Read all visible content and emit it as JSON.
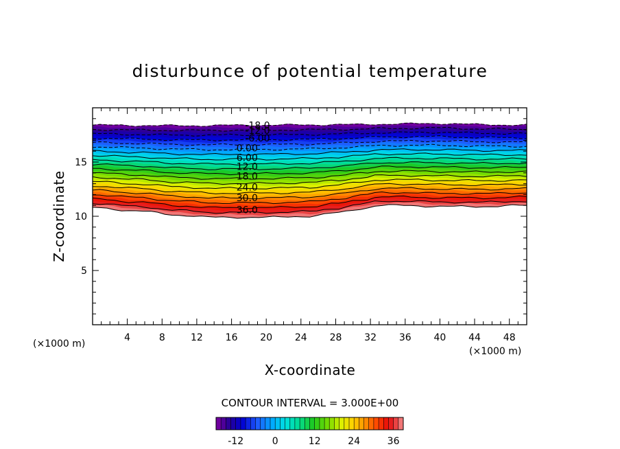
{
  "chart_data": {
    "type": "contour",
    "title": "disturbunce of potential temperature",
    "xlabel": "X-coordinate",
    "ylabel": "Z-coordinate",
    "x_unit": "(×1000 m)",
    "y_unit": "(×1000 m)",
    "xlim": [
      0,
      50
    ],
    "ylim": [
      0,
      20
    ],
    "x_ticks": [
      4,
      8,
      12,
      16,
      20,
      24,
      28,
      32,
      36,
      40,
      44,
      48
    ],
    "y_ticks": [
      5,
      10,
      15
    ],
    "contour_interval_text": "CONTOUR INTERVAL = 3.000E+00",
    "contour_interval": 3,
    "levels": [
      -18,
      -15,
      -12,
      -9,
      -6,
      -3,
      0,
      3,
      6,
      9,
      12,
      15,
      18,
      21,
      24,
      27,
      30,
      33,
      36,
      39
    ],
    "contour_labels": [
      {
        "value": -18,
        "text": "-18.0",
        "x": 19,
        "z": 18.4
      },
      {
        "value": -12,
        "text": "-12.0",
        "x": 19,
        "z": 17.9
      },
      {
        "value": -6,
        "text": "-6.00",
        "x": 19,
        "z": 17.2
      },
      {
        "value": 0,
        "text": "0.00",
        "x": 17.8,
        "z": 16.3
      },
      {
        "value": 6,
        "text": "6.00",
        "x": 17.8,
        "z": 15.4
      },
      {
        "value": 12,
        "text": "12.0",
        "x": 17.8,
        "z": 14.6
      },
      {
        "value": 18,
        "text": "18.0",
        "x": 17.8,
        "z": 13.7
      },
      {
        "value": 24,
        "text": "24.0",
        "x": 17.8,
        "z": 12.7
      },
      {
        "value": 30,
        "text": "30.0",
        "x": 17.8,
        "z": 11.7
      },
      {
        "value": 36,
        "text": "36.0",
        "x": 17.8,
        "z": 10.6
      }
    ],
    "top_boundary_z": [
      [
        0,
        18.4
      ],
      [
        10,
        18.35
      ],
      [
        20,
        18.4
      ],
      [
        30,
        18.45
      ],
      [
        34,
        18.5
      ],
      [
        40,
        18.55
      ],
      [
        45,
        18.45
      ],
      [
        50,
        18.4
      ]
    ],
    "bottom_boundary_z": [
      [
        0,
        10.8
      ],
      [
        5,
        10.5
      ],
      [
        10,
        10.1
      ],
      [
        14,
        9.9
      ],
      [
        20,
        9.9
      ],
      [
        25,
        10.0
      ],
      [
        28,
        10.3
      ],
      [
        31,
        10.7
      ],
      [
        33,
        11.0
      ],
      [
        36,
        11.0
      ],
      [
        40,
        10.9
      ],
      [
        45,
        10.9
      ],
      [
        50,
        11.0
      ]
    ],
    "colorbar": {
      "range": [
        -18,
        39
      ],
      "tick_values": [
        -12,
        0,
        12,
        24,
        36
      ],
      "tick_labels": [
        "-12",
        "0",
        "12",
        "24",
        "36"
      ]
    }
  }
}
